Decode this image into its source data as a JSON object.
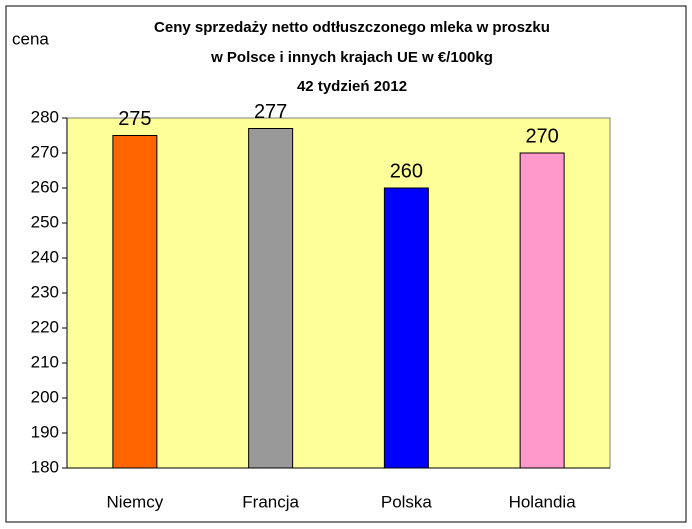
{
  "chart_data": {
    "type": "bar",
    "title": [
      "Ceny sprzedaży netto odtłuszczonego mleka w proszku",
      "w Polsce i innych krajach UE w €/100kg",
      "42 tydzień 2012"
    ],
    "y_label": "cena",
    "categories": [
      "Niemcy",
      "Francja",
      "Polska",
      "Holandia"
    ],
    "values": [
      275,
      277,
      260,
      270
    ],
    "colors": [
      "#ff6600",
      "#999999",
      "#0000ff",
      "#ff99cc"
    ],
    "ylim": [
      180,
      280
    ],
    "yticks": [
      180,
      190,
      200,
      210,
      220,
      230,
      240,
      250,
      260,
      270,
      280
    ],
    "grid": false,
    "plot_background": "#ffff99"
  }
}
